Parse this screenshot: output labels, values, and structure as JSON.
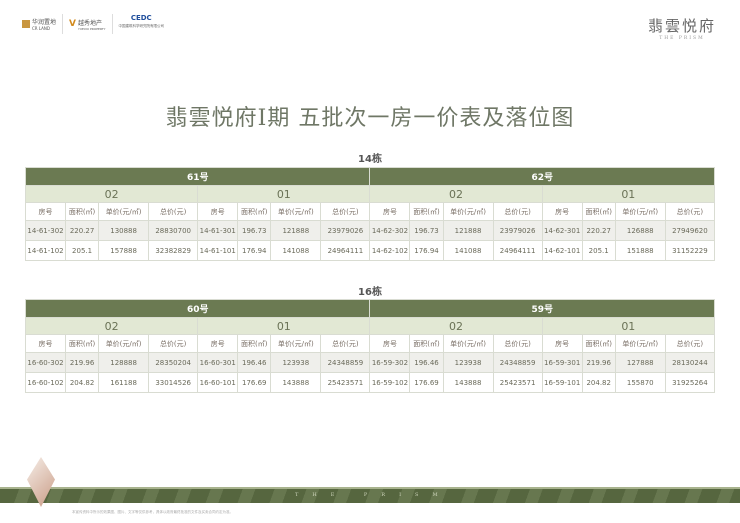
{
  "header": {
    "logo1": "华润置地",
    "logo1_en": "CR LAND",
    "logo2": "越秀地产",
    "logo2_en": "YUEXIU PROPERTY",
    "logo3": "CEDC",
    "logo3_sub": "中国建筑科学研究院有限公司",
    "brand_cn": "翡雲悦府",
    "brand_en": "THE PRISM"
  },
  "title": "翡雲悦府I期  五批次一房一价表及落位图",
  "col_headers": [
    "房号",
    "面积(㎡)",
    "单价(元/㎡)",
    "总价(元)"
  ],
  "buildings": [
    {
      "label": "14栋",
      "blocks": [
        {
          "name": "61号",
          "units": [
            {
              "name": "02",
              "rows": [
                [
                  "14-61-302",
                  "220.27",
                  "130888",
                  "28830700"
                ],
                [
                  "14-61-102",
                  "205.1",
                  "157888",
                  "32382829"
                ]
              ]
            },
            {
              "name": "01",
              "rows": [
                [
                  "14-61-301",
                  "196.73",
                  "121888",
                  "23979026"
                ],
                [
                  "14-61-101",
                  "176.94",
                  "141088",
                  "24964111"
                ]
              ]
            }
          ]
        },
        {
          "name": "62号",
          "units": [
            {
              "name": "02",
              "rows": [
                [
                  "14-62-302",
                  "196.73",
                  "121888",
                  "23979026"
                ],
                [
                  "14-62-102",
                  "176.94",
                  "141088",
                  "24964111"
                ]
              ]
            },
            {
              "name": "01",
              "rows": [
                [
                  "14-62-301",
                  "220.27",
                  "126888",
                  "27949620"
                ],
                [
                  "14-62-101",
                  "205.1",
                  "151888",
                  "31152229"
                ]
              ]
            }
          ]
        }
      ]
    },
    {
      "label": "16栋",
      "blocks": [
        {
          "name": "60号",
          "units": [
            {
              "name": "02",
              "rows": [
                [
                  "16-60-302",
                  "219.96",
                  "128888",
                  "28350204"
                ],
                [
                  "16-60-102",
                  "204.82",
                  "161188",
                  "33014526"
                ]
              ]
            },
            {
              "name": "01",
              "rows": [
                [
                  "16-60-301",
                  "196.46",
                  "123938",
                  "24348859"
                ],
                [
                  "16-60-101",
                  "176.69",
                  "143888",
                  "25423571"
                ]
              ]
            }
          ]
        },
        {
          "name": "59号",
          "units": [
            {
              "name": "02",
              "rows": [
                [
                  "16-59-302",
                  "196.46",
                  "123938",
                  "24348859"
                ],
                [
                  "16-59-102",
                  "176.69",
                  "143888",
                  "25423571"
                ]
              ]
            },
            {
              "name": "01",
              "rows": [
                [
                  "16-59-301",
                  "219.96",
                  "127888",
                  "28130244"
                ],
                [
                  "16-59-101",
                  "204.82",
                  "155870",
                  "31925264"
                ]
              ]
            }
          ]
        }
      ]
    }
  ],
  "footer": {
    "band_text": "THE PRISM",
    "disclaimer": "本宣传资料中所示的效果图、图片、文字等仅供参考，具体以政府最终批准的文件及买卖合同约定为准。"
  },
  "colors": {
    "green": "#6b7a52",
    "light_green": "#e2e8d4"
  }
}
